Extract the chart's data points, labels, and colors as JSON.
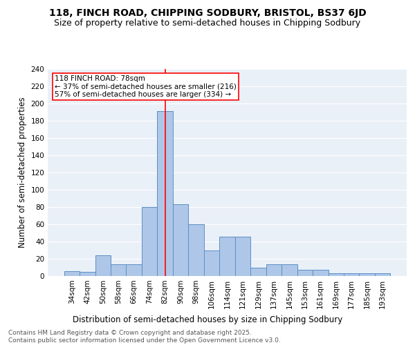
{
  "title": "118, FINCH ROAD, CHIPPING SODBURY, BRISTOL, BS37 6JD",
  "subtitle": "Size of property relative to semi-detached houses in Chipping Sodbury",
  "xlabel": "Distribution of semi-detached houses by size in Chipping Sodbury",
  "ylabel": "Number of semi-detached properties",
  "bins": [
    "34sqm",
    "42sqm",
    "50sqm",
    "58sqm",
    "66sqm",
    "74sqm",
    "82sqm",
    "90sqm",
    "98sqm",
    "106sqm",
    "114sqm",
    "121sqm",
    "129sqm",
    "137sqm",
    "145sqm",
    "153sqm",
    "161sqm",
    "169sqm",
    "177sqm",
    "185sqm",
    "193sqm"
  ],
  "values": [
    6,
    5,
    24,
    14,
    14,
    80,
    191,
    83,
    60,
    30,
    46,
    46,
    10,
    14,
    14,
    7,
    7,
    3,
    3,
    3,
    3
  ],
  "bar_color": "#aec6e8",
  "bar_edge_color": "#5a8fc4",
  "annotation_title": "118 FINCH ROAD: 78sqm",
  "annotation_line1": "← 37% of semi-detached houses are smaller (216)",
  "annotation_line2": "57% of semi-detached houses are larger (334) →",
  "vline_color": "red",
  "bg_color": "#eaf0f8",
  "grid_color": "white",
  "footer": "Contains HM Land Registry data © Crown copyright and database right 2025.\nContains public sector information licensed under the Open Government Licence v3.0.",
  "ylim": [
    0,
    240
  ],
  "yticks": [
    0,
    20,
    40,
    60,
    80,
    100,
    120,
    140,
    160,
    180,
    200,
    220,
    240
  ],
  "title_fontsize": 10,
  "subtitle_fontsize": 9,
  "label_fontsize": 8.5,
  "tick_fontsize": 7.5,
  "footer_fontsize": 6.5,
  "annot_fontsize": 7.5
}
